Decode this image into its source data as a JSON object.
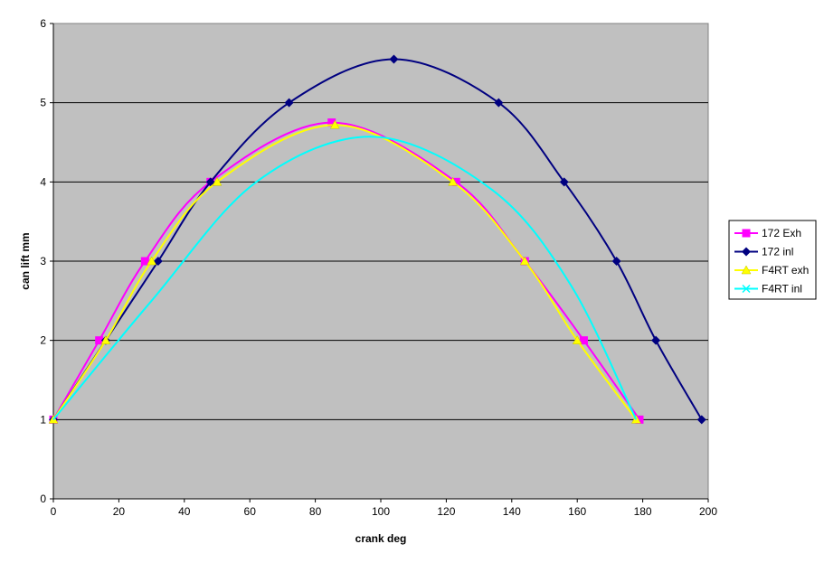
{
  "chart_data": {
    "type": "line",
    "title": "",
    "xlabel": "crank deg",
    "ylabel": "can lift mm",
    "xlim": [
      0,
      200
    ],
    "ylim": [
      0,
      6
    ],
    "xticks": [
      0,
      20,
      40,
      60,
      80,
      100,
      120,
      140,
      160,
      180,
      200
    ],
    "yticks": [
      0,
      1,
      2,
      3,
      4,
      5,
      6
    ],
    "grid": "horizontal",
    "legend_position": "right",
    "plot_background": "#C0C0C0",
    "series": [
      {
        "name": "172 Exh",
        "color": "#FF00FF",
        "marker": "square",
        "x": [
          0,
          14,
          28,
          48,
          85,
          123,
          144,
          162,
          179
        ],
        "y": [
          1,
          2,
          3,
          4,
          4.75,
          4,
          3,
          2,
          1
        ]
      },
      {
        "name": "172 inl",
        "color": "#000080",
        "marker": "diamond",
        "x": [
          0,
          16,
          32,
          48,
          72,
          104,
          136,
          156,
          172,
          184,
          198
        ],
        "y": [
          1,
          2,
          3,
          4,
          5,
          5.55,
          5,
          4,
          3,
          2,
          1
        ]
      },
      {
        "name": "F4RT exh",
        "color": "#FFFF00",
        "marker": "triangle",
        "x": [
          0,
          16,
          30,
          50,
          86,
          122,
          144,
          160,
          178
        ],
        "y": [
          1,
          2,
          3,
          4,
          4.72,
          4,
          3,
          2,
          1
        ]
      },
      {
        "name": "F4RT inl",
        "color": "#00FFFF",
        "marker": "x",
        "x": [
          0,
          30,
          62,
          98,
          134,
          158,
          178
        ],
        "y": [
          1,
          2.5,
          4,
          4.57,
          3.9,
          2.7,
          1
        ]
      }
    ]
  }
}
